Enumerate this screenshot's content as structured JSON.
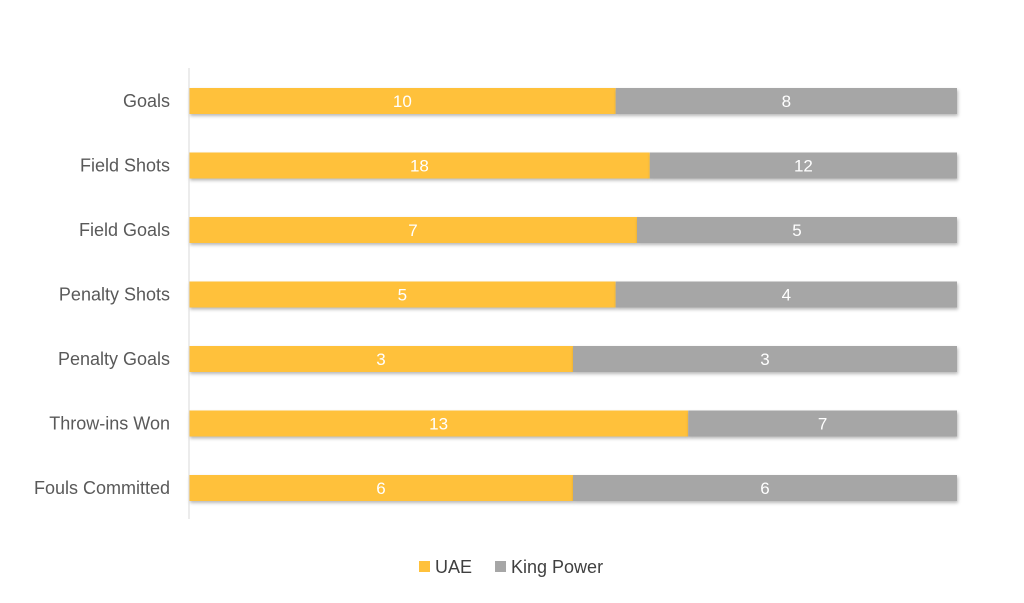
{
  "chart_data": {
    "type": "bar",
    "orientation": "horizontal",
    "stacked": "percent",
    "categories": [
      "Goals",
      "Field Shots",
      "Field Goals",
      "Penalty Shots",
      "Penalty Goals",
      "Throw-ins Won",
      "Fouls Committed"
    ],
    "series": [
      {
        "name": "UAE",
        "color": "#FFC13B",
        "values": [
          10,
          18,
          7,
          5,
          3,
          13,
          6
        ]
      },
      {
        "name": "King Power",
        "color": "#A6A6A6",
        "values": [
          8,
          12,
          5,
          4,
          3,
          7,
          6
        ]
      }
    ],
    "data_labels": true,
    "grid": false,
    "legend": "bottom"
  }
}
